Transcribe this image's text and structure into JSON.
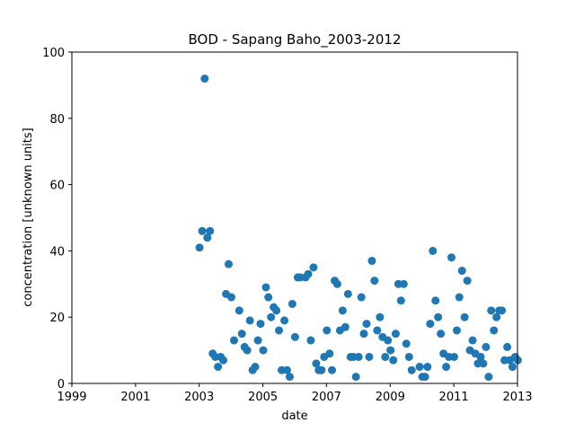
{
  "chart_data": {
    "type": "scatter",
    "title": "BOD - Sapang Baho_2003-2012",
    "xlabel": "date",
    "ylabel": "concentration [unknown units]",
    "xlim": [
      "1999-01-01",
      "2013-01-01"
    ],
    "ylim": [
      0,
      100
    ],
    "x_ticks": [
      "1999",
      "2001",
      "2003",
      "2005",
      "2007",
      "2009",
      "2011",
      "2013"
    ],
    "y_ticks": [
      0,
      20,
      40,
      60,
      80,
      100
    ],
    "grid": false,
    "color": "#1f77b4",
    "points": [
      {
        "x": "2003-01-05",
        "y": 41
      },
      {
        "x": "2003-02-05",
        "y": 46
      },
      {
        "x": "2003-03-05",
        "y": 92
      },
      {
        "x": "2003-04-05",
        "y": 44
      },
      {
        "x": "2003-05-05",
        "y": 46
      },
      {
        "x": "2003-06-05",
        "y": 9
      },
      {
        "x": "2003-07-05",
        "y": 8
      },
      {
        "x": "2003-08-05",
        "y": 5
      },
      {
        "x": "2003-09-05",
        "y": 8
      },
      {
        "x": "2003-10-05",
        "y": 7
      },
      {
        "x": "2003-11-05",
        "y": 27
      },
      {
        "x": "2003-12-05",
        "y": 36
      },
      {
        "x": "2004-01-05",
        "y": 26
      },
      {
        "x": "2004-02-05",
        "y": 13
      },
      {
        "x": "2004-04-05",
        "y": 22
      },
      {
        "x": "2004-05-05",
        "y": 15
      },
      {
        "x": "2004-06-05",
        "y": 11
      },
      {
        "x": "2004-07-05",
        "y": 10
      },
      {
        "x": "2004-08-05",
        "y": 19
      },
      {
        "x": "2004-09-05",
        "y": 4
      },
      {
        "x": "2004-10-05",
        "y": 5
      },
      {
        "x": "2004-11-05",
        "y": 13
      },
      {
        "x": "2004-12-05",
        "y": 18
      },
      {
        "x": "2005-01-05",
        "y": 10
      },
      {
        "x": "2005-02-05",
        "y": 29
      },
      {
        "x": "2005-03-05",
        "y": 26
      },
      {
        "x": "2005-04-05",
        "y": 20
      },
      {
        "x": "2005-05-05",
        "y": 23
      },
      {
        "x": "2005-06-05",
        "y": 22
      },
      {
        "x": "2005-07-05",
        "y": 16
      },
      {
        "x": "2005-08-05",
        "y": 4
      },
      {
        "x": "2005-09-05",
        "y": 19
      },
      {
        "x": "2005-10-05",
        "y": 4
      },
      {
        "x": "2005-11-05",
        "y": 2
      },
      {
        "x": "2005-12-05",
        "y": 24
      },
      {
        "x": "2006-01-05",
        "y": 14
      },
      {
        "x": "2006-02-05",
        "y": 32
      },
      {
        "x": "2006-03-05",
        "y": 32
      },
      {
        "x": "2006-05-05",
        "y": 32
      },
      {
        "x": "2006-06-05",
        "y": 33
      },
      {
        "x": "2006-07-05",
        "y": 13
      },
      {
        "x": "2006-08-05",
        "y": 35
      },
      {
        "x": "2006-09-05",
        "y": 6
      },
      {
        "x": "2006-10-05",
        "y": 4
      },
      {
        "x": "2006-11-05",
        "y": 4
      },
      {
        "x": "2006-12-05",
        "y": 8
      },
      {
        "x": "2007-01-05",
        "y": 16
      },
      {
        "x": "2007-02-05",
        "y": 9
      },
      {
        "x": "2007-03-05",
        "y": 4
      },
      {
        "x": "2007-04-05",
        "y": 31
      },
      {
        "x": "2007-05-05",
        "y": 30
      },
      {
        "x": "2007-06-05",
        "y": 16
      },
      {
        "x": "2007-07-05",
        "y": 22
      },
      {
        "x": "2007-08-05",
        "y": 17
      },
      {
        "x": "2007-09-05",
        "y": 27
      },
      {
        "x": "2007-10-05",
        "y": 8
      },
      {
        "x": "2007-11-05",
        "y": 8
      },
      {
        "x": "2007-12-05",
        "y": 2
      },
      {
        "x": "2008-01-05",
        "y": 8
      },
      {
        "x": "2008-02-05",
        "y": 26
      },
      {
        "x": "2008-03-05",
        "y": 15
      },
      {
        "x": "2008-04-05",
        "y": 18
      },
      {
        "x": "2008-05-05",
        "y": 8
      },
      {
        "x": "2008-06-05",
        "y": 37
      },
      {
        "x": "2008-07-05",
        "y": 31
      },
      {
        "x": "2008-08-05",
        "y": 16
      },
      {
        "x": "2008-09-05",
        "y": 20
      },
      {
        "x": "2008-10-05",
        "y": 14
      },
      {
        "x": "2008-11-05",
        "y": 8
      },
      {
        "x": "2008-12-05",
        "y": 13
      },
      {
        "x": "2009-01-05",
        "y": 10
      },
      {
        "x": "2009-02-05",
        "y": 7
      },
      {
        "x": "2009-03-05",
        "y": 15
      },
      {
        "x": "2009-04-05",
        "y": 30
      },
      {
        "x": "2009-05-05",
        "y": 25
      },
      {
        "x": "2009-06-05",
        "y": 30
      },
      {
        "x": "2009-07-05",
        "y": 12
      },
      {
        "x": "2009-08-05",
        "y": 8
      },
      {
        "x": "2009-09-05",
        "y": 4
      },
      {
        "x": "2009-12-05",
        "y": 5
      },
      {
        "x": "2010-01-05",
        "y": 2
      },
      {
        "x": "2010-02-05",
        "y": 2
      },
      {
        "x": "2010-03-05",
        "y": 5
      },
      {
        "x": "2010-04-05",
        "y": 18
      },
      {
        "x": "2010-05-05",
        "y": 40
      },
      {
        "x": "2010-06-05",
        "y": 25
      },
      {
        "x": "2010-07-05",
        "y": 20
      },
      {
        "x": "2010-08-05",
        "y": 15
      },
      {
        "x": "2010-09-05",
        "y": 9
      },
      {
        "x": "2010-10-05",
        "y": 5
      },
      {
        "x": "2010-11-05",
        "y": 8
      },
      {
        "x": "2010-12-05",
        "y": 38
      },
      {
        "x": "2011-01-05",
        "y": 8
      },
      {
        "x": "2011-02-05",
        "y": 16
      },
      {
        "x": "2011-03-05",
        "y": 26
      },
      {
        "x": "2011-04-05",
        "y": 34
      },
      {
        "x": "2011-05-05",
        "y": 20
      },
      {
        "x": "2011-06-05",
        "y": 31
      },
      {
        "x": "2011-07-05",
        "y": 10
      },
      {
        "x": "2011-08-05",
        "y": 13
      },
      {
        "x": "2011-09-05",
        "y": 9
      },
      {
        "x": "2011-10-05",
        "y": 6
      },
      {
        "x": "2011-11-05",
        "y": 8
      },
      {
        "x": "2011-12-05",
        "y": 6
      },
      {
        "x": "2012-01-05",
        "y": 11
      },
      {
        "x": "2012-02-05",
        "y": 2
      },
      {
        "x": "2012-03-05",
        "y": 22
      },
      {
        "x": "2012-04-05",
        "y": 16
      },
      {
        "x": "2012-05-05",
        "y": 20
      },
      {
        "x": "2012-06-05",
        "y": 22
      },
      {
        "x": "2012-07-05",
        "y": 22
      },
      {
        "x": "2012-08-05",
        "y": 7
      },
      {
        "x": "2012-09-05",
        "y": 11
      },
      {
        "x": "2012-10-05",
        "y": 7
      },
      {
        "x": "2012-11-05",
        "y": 5
      },
      {
        "x": "2012-12-05",
        "y": 8
      },
      {
        "x": "2013-01-05",
        "y": 7
      }
    ]
  }
}
